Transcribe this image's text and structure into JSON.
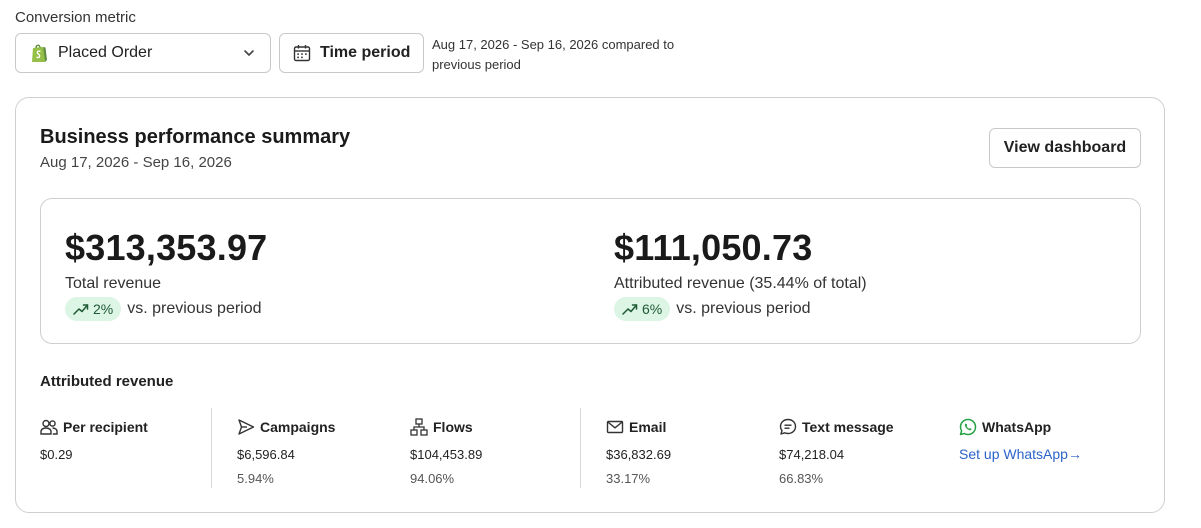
{
  "conversion_metric": {
    "label": "Conversion metric",
    "selected": "Placed Order",
    "icon": "shopify-bag-icon"
  },
  "time_period": {
    "button_label": "Time period",
    "note": "Aug 17, 2026 - Sep 16, 2026 compared to previous period"
  },
  "summary_card": {
    "title": "Business performance summary",
    "date_range": "Aug 17, 2026 - Sep 16, 2026",
    "view_dashboard_label": "View dashboard"
  },
  "metrics": {
    "total": {
      "amount": "$313,353.97",
      "label": "Total revenue",
      "change": "2%",
      "compare": "vs. previous period"
    },
    "attributed": {
      "amount": "$111,050.73",
      "label": "Attributed revenue (35.44% of total)",
      "change": "6%",
      "compare": "vs. previous period"
    }
  },
  "attributed_revenue": {
    "title": "Attributed revenue",
    "columns": [
      {
        "name": "Per recipient",
        "icon": "people-icon",
        "value": "$0.29",
        "pct": ""
      },
      {
        "name": "Campaigns",
        "icon": "send-icon",
        "value": "$6,596.84",
        "pct": "5.94%"
      },
      {
        "name": "Flows",
        "icon": "flow-icon",
        "value": "$104,453.89",
        "pct": "94.06%"
      },
      {
        "name": "Email",
        "icon": "mail-icon",
        "value": "$36,832.69",
        "pct": "33.17%"
      },
      {
        "name": "Text message",
        "icon": "chat-bubble-icon",
        "value": "$74,218.04",
        "pct": "66.83%"
      },
      {
        "name": "WhatsApp",
        "icon": "whatsapp-icon",
        "link": "Set up WhatsApp"
      }
    ]
  },
  "colors": {
    "positive_pill_bg": "#dcf5e4",
    "positive_pill_text": "#1f5a35",
    "link": "#2b63c8",
    "shopify_green": "#5e8e3e",
    "whatsapp_green": "#25a244"
  }
}
